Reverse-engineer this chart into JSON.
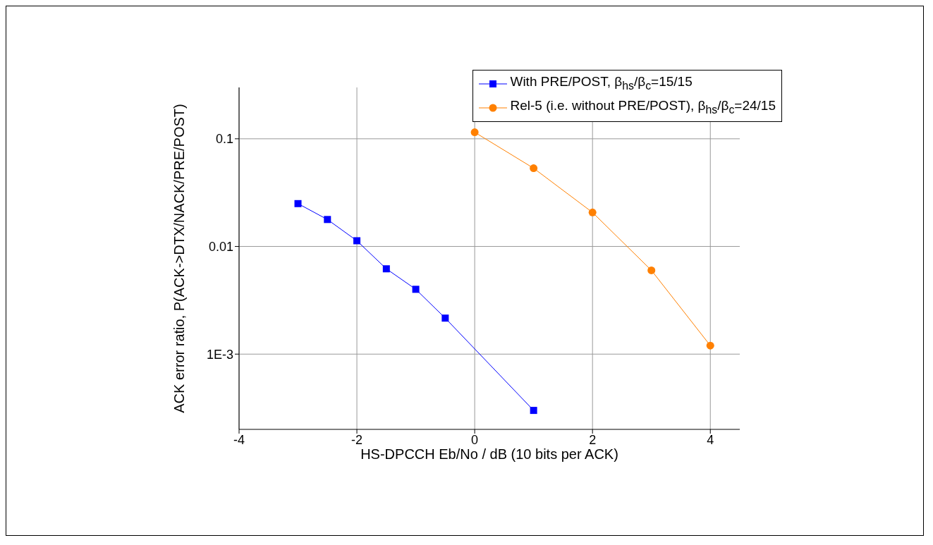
{
  "chart_data": {
    "type": "line",
    "xlabel": "HS-DPCCH Eb/No / dB   (10 bits per ACK)",
    "ylabel": "ACK error ratio, P(ACK->DTX/NACK/PRE/POST)",
    "log": "y",
    "grid": true,
    "legend": "top right",
    "xlim": [
      -4,
      4.5
    ],
    "xticks": [
      -4,
      -2,
      0,
      2,
      4
    ],
    "ylim": [
      0.0002,
      0.3
    ],
    "yticks": [
      {
        "value": 0.001,
        "label": "1E-3"
      },
      0.01,
      0.1
    ],
    "series": [
      {
        "name": "With PRE/POST, β$_{hs}$/β$_{c}$=15/15",
        "color": "#0000ff",
        "marker": "square",
        "x": [
          -3,
          -2.5,
          -2,
          -1.5,
          -1,
          -0.5,
          1
        ],
        "values": [
          0.025,
          0.0178,
          0.0113,
          0.0062,
          0.004,
          0.00216,
          0.0003
        ]
      },
      {
        "name": "Rel-5 (i.e. without PRE/POST), β$_{hs}$/β$_{c}$=24/15",
        "color": "#ff8000",
        "marker": "circle",
        "x": [
          0,
          1,
          2,
          3,
          4
        ],
        "values": [
          0.115,
          0.0533,
          0.0207,
          0.006,
          0.0012
        ]
      }
    ]
  }
}
